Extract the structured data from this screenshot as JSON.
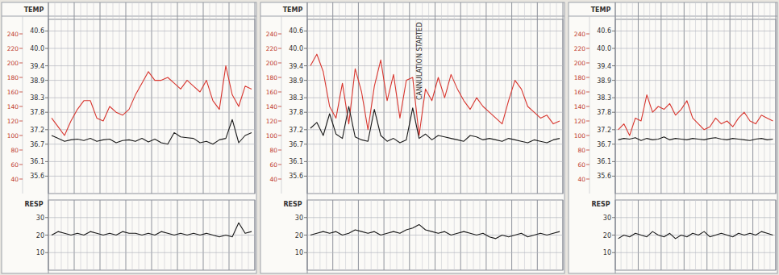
{
  "chart_data": [
    {
      "type": "line",
      "y_label": "TEMP",
      "categories": [
        null,
        null,
        null,
        null,
        null,
        null,
        null,
        null,
        null,
        null,
        null,
        null,
        null,
        null,
        null,
        null,
        null,
        null,
        null,
        null,
        null,
        null,
        null,
        null,
        null,
        null,
        null,
        null,
        null,
        null,
        null,
        null
      ],
      "ylim": [
        35.0,
        41.0
      ],
      "yticks": [
        35.6,
        36.1,
        36.7,
        37.2,
        37.8,
        38.3,
        38.9,
        39.4,
        {
          "value": 40,
          "label": "40.0"
        },
        40.6
      ],
      "y2lim": [
        20,
        260
      ],
      "y2ticks": [
        40,
        60,
        80,
        100,
        120,
        140,
        160,
        180,
        200,
        220,
        240
      ],
      "grid": true,
      "tick_labels": "y",
      "series": [
        {
          "color": "#d8362f",
          "values": [
            37.6,
            37.3,
            37.0,
            37.5,
            37.9,
            38.2,
            38.2,
            37.6,
            37.5,
            38.0,
            37.8,
            37.7,
            37.9,
            38.4,
            38.8,
            39.2,
            38.9,
            38.9,
            39.0,
            38.8,
            38.6,
            38.9,
            38.7,
            38.5,
            38.9,
            38.2,
            37.9,
            39.4,
            38.4,
            38.0,
            38.7,
            38.6
          ]
        },
        {
          "color": "#1a1a1a",
          "axis": "y2",
          "values": [
            100,
            96,
            92,
            94,
            95,
            93,
            96,
            92,
            94,
            95,
            90,
            93,
            94,
            92,
            96,
            91,
            95,
            90,
            88,
            104,
            98,
            97,
            96,
            90,
            92,
            88,
            94,
            96,
            122,
            90,
            100,
            104
          ]
        }
      ]
    },
    {
      "type": "line",
      "y_label": "RESP",
      "categories": [
        null,
        null,
        null,
        null,
        null,
        null,
        null,
        null,
        null,
        null,
        null,
        null,
        null,
        null,
        null,
        null,
        null,
        null,
        null,
        null,
        null,
        null,
        null,
        null,
        null,
        null,
        null,
        null,
        null,
        null,
        null,
        null
      ],
      "ylim": [
        0,
        40
      ],
      "yticks": [
        10,
        20,
        30
      ],
      "grid": true,
      "tick_labels": "y",
      "series": [
        {
          "color": "#1a1a1a",
          "values": [
            20,
            22,
            21,
            20,
            21,
            20,
            22,
            21,
            20,
            21,
            20,
            22,
            21,
            21,
            20,
            21,
            20,
            22,
            21,
            20,
            21,
            20,
            21,
            20,
            21,
            20,
            19,
            20,
            19,
            27,
            21,
            22
          ]
        }
      ]
    },
    {
      "type": "line",
      "y_label": "TEMP",
      "categories": [
        null,
        null,
        null,
        null,
        null,
        null,
        null,
        null,
        null,
        null,
        null,
        null,
        null,
        null,
        null,
        null,
        null,
        null,
        null,
        null,
        null,
        null,
        null,
        null,
        null,
        null,
        null,
        null,
        null,
        null,
        null,
        null,
        null,
        null,
        null,
        null,
        null,
        null,
        null,
        null
      ],
      "ylim": [
        35.0,
        41.0
      ],
      "yticks": [
        35.6,
        36.1,
        36.7,
        37.2,
        37.8,
        38.3,
        38.9,
        39.4,
        {
          "value": 40,
          "label": "40.0"
        },
        40.6
      ],
      "y2lim": [
        20,
        260
      ],
      "y2ticks": [
        40,
        60,
        80,
        100,
        120,
        140,
        160,
        180,
        200,
        220,
        240
      ],
      "grid": true,
      "tick_labels": "y",
      "annotations": [
        {
          "text": "CANNULATION STARTED",
          "index": 17
        }
      ],
      "series": [
        {
          "color": "#d8362f",
          "values": [
            39.4,
            39.8,
            39.2,
            38.0,
            37.6,
            38.8,
            37.4,
            39.3,
            38.5,
            37.2,
            38.7,
            39.6,
            38.2,
            39.1,
            37.6,
            38.9,
            39.0,
            37.0,
            38.6,
            38.2,
            39.0,
            38.3,
            39.1,
            38.6,
            38.2,
            37.9,
            38.3,
            38.0,
            37.8,
            37.6,
            37.4,
            38.2,
            38.9,
            38.6,
            38.0,
            37.8,
            37.6,
            37.7,
            37.4,
            37.5
          ]
        },
        {
          "color": "#1a1a1a",
          "axis": "y2",
          "values": [
            110,
            118,
            100,
            130,
            102,
            96,
            140,
            98,
            94,
            92,
            136,
            100,
            92,
            96,
            90,
            94,
            138,
            96,
            102,
            94,
            100,
            98,
            96,
            94,
            92,
            100,
            98,
            94,
            96,
            94,
            92,
            96,
            94,
            92,
            90,
            94,
            92,
            90,
            94,
            96
          ]
        }
      ]
    },
    {
      "type": "line",
      "y_label": "RESP",
      "categories": [
        null,
        null,
        null,
        null,
        null,
        null,
        null,
        null,
        null,
        null,
        null,
        null,
        null,
        null,
        null,
        null,
        null,
        null,
        null,
        null,
        null,
        null,
        null,
        null,
        null,
        null,
        null,
        null,
        null,
        null,
        null,
        null,
        null,
        null,
        null,
        null,
        null,
        null,
        null,
        null
      ],
      "ylim": [
        0,
        40
      ],
      "yticks": [
        10,
        20,
        30
      ],
      "grid": true,
      "tick_labels": "y",
      "series": [
        {
          "color": "#1a1a1a",
          "values": [
            20,
            21,
            22,
            21,
            22,
            20,
            21,
            23,
            22,
            21,
            22,
            20,
            21,
            22,
            21,
            23,
            24,
            26,
            23,
            22,
            21,
            22,
            20,
            21,
            22,
            21,
            20,
            21,
            19,
            18,
            20,
            19,
            20,
            21,
            19,
            20,
            21,
            20,
            21,
            22
          ]
        }
      ]
    },
    {
      "type": "line",
      "y_label": "TEMP",
      "categories": [
        null,
        null,
        null,
        null,
        null,
        null,
        null,
        null,
        null,
        null,
        null,
        null,
        null,
        null,
        null,
        null,
        null,
        null,
        null,
        null,
        null,
        null,
        null,
        null,
        null,
        null,
        null,
        null
      ],
      "ylim": [
        35.0,
        41.0
      ],
      "yticks": [
        35.6,
        36.1,
        36.7,
        37.2,
        37.8,
        38.3,
        38.9,
        39.4,
        {
          "value": 40,
          "label": "40.0"
        },
        40.6
      ],
      "y2lim": [
        20,
        260
      ],
      "y2ticks": [
        40,
        60,
        80,
        100,
        120,
        140,
        160,
        180,
        200,
        220,
        240
      ],
      "grid": true,
      "tick_labels": "y",
      "series": [
        {
          "color": "#d8362f",
          "values": [
            37.2,
            37.4,
            37.0,
            37.6,
            37.5,
            38.4,
            37.8,
            38.0,
            37.9,
            38.1,
            37.7,
            37.9,
            38.2,
            37.6,
            37.4,
            37.2,
            37.3,
            37.6,
            37.4,
            37.5,
            37.3,
            37.6,
            37.8,
            37.5,
            37.4,
            37.7,
            37.6,
            37.5
          ]
        },
        {
          "color": "#1a1a1a",
          "axis": "y2",
          "values": [
            94,
            96,
            95,
            97,
            93,
            96,
            94,
            95,
            98,
            94,
            96,
            95,
            94,
            96,
            95,
            94,
            96,
            97,
            95,
            94,
            96,
            95,
            94,
            93,
            95,
            96,
            94,
            95
          ]
        }
      ]
    },
    {
      "type": "line",
      "y_label": "RESP",
      "categories": [
        null,
        null,
        null,
        null,
        null,
        null,
        null,
        null,
        null,
        null,
        null,
        null,
        null,
        null,
        null,
        null,
        null,
        null,
        null,
        null,
        null,
        null,
        null,
        null,
        null,
        null,
        null,
        null
      ],
      "ylim": [
        0,
        40
      ],
      "yticks": [
        10,
        20,
        30
      ],
      "grid": true,
      "tick_labels": "y",
      "series": [
        {
          "color": "#1a1a1a",
          "values": [
            18,
            20,
            19,
            21,
            20,
            19,
            22,
            20,
            19,
            21,
            18,
            20,
            19,
            21,
            20,
            22,
            19,
            20,
            21,
            20,
            19,
            21,
            20,
            21,
            20,
            22,
            21,
            20
          ]
        }
      ]
    }
  ]
}
